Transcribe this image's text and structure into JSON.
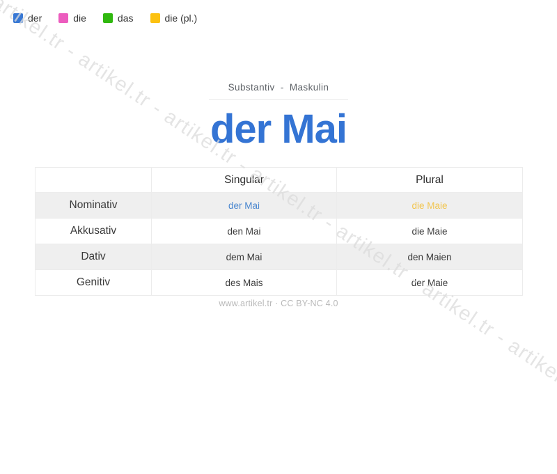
{
  "legend": {
    "items": [
      {
        "label": "der",
        "color": "#3878d4"
      },
      {
        "label": "die",
        "color": "#ec5cbe"
      },
      {
        "label": "das",
        "color": "#30b80f"
      },
      {
        "label": "die (pl.)",
        "color": "#fcc110"
      }
    ]
  },
  "header": {
    "subtitle": "Substantiv - Maskulin",
    "title": "der Mai",
    "title_color": "#3474d4"
  },
  "table": {
    "columns": [
      "",
      "Singular",
      "Plural"
    ],
    "rows": [
      {
        "case": "Nominativ",
        "singular": "der Mai",
        "plural": "die Maie",
        "singular_color": "#4b87cf",
        "plural_color": "#f2c54e"
      },
      {
        "case": "Akkusativ",
        "singular": "den Mai",
        "plural": "die Maie"
      },
      {
        "case": "Dativ",
        "singular": "dem Mai",
        "plural": "den Maien"
      },
      {
        "case": "Genitiv",
        "singular": "des Mais",
        "plural": "der Maie"
      }
    ]
  },
  "footer": {
    "text": "www.artikel.tr · CC BY-NC 4.0"
  },
  "watermark": {
    "text": "artikel.tr - artikel.tr - artikel.tr - artikel.tr - artikel.tr - artikel.tr - artikel.tr - artikel.tr - artikel.tr - artikel.tr"
  }
}
